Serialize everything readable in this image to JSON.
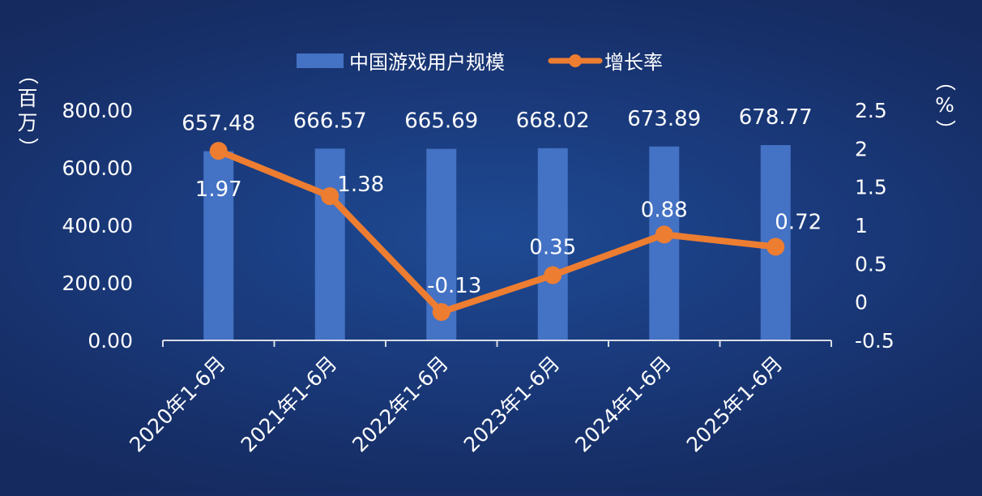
{
  "chart_data": {
    "type": "bar",
    "categories": [
      "2020年1-6月",
      "2021年1-6月",
      "2022年1-6月",
      "2023年1-6月",
      "2024年1-6月",
      "2025年1-6月"
    ],
    "series": [
      {
        "name": "中国游戏用户规模",
        "type": "bar",
        "axis": "left",
        "values": [
          657.48,
          666.57,
          665.69,
          668.02,
          673.89,
          678.77
        ],
        "labels": [
          "657.48",
          "666.57",
          "665.69",
          "668.02",
          "673.89",
          "678.77"
        ],
        "color": "#4472c4"
      },
      {
        "name": "增长率",
        "type": "line",
        "axis": "right",
        "values": [
          1.97,
          1.38,
          -0.13,
          0.35,
          0.88,
          0.72
        ],
        "labels": [
          "1.97",
          "1.38",
          "-0.13",
          "0.35",
          "0.88",
          "0.72"
        ],
        "color": "#ed7d31"
      }
    ],
    "y_left": {
      "label": "（百万）",
      "ylim": [
        0,
        800
      ],
      "ticks": [
        0,
        200,
        400,
        600,
        800
      ],
      "tick_labels": [
        "0.00",
        "200.00",
        "400.00",
        "600.00",
        "800.00"
      ]
    },
    "y_right": {
      "label": "（%）",
      "ylim": [
        -0.5,
        2.5
      ],
      "ticks": [
        -0.5,
        0,
        0.5,
        1,
        1.5,
        2,
        2.5
      ],
      "tick_labels": [
        "-0.5",
        "0",
        "0.5",
        "1",
        "1.5",
        "2",
        "2.5"
      ]
    },
    "legend_position": "top-center",
    "grid": false
  },
  "colors": {
    "text": "#ffffff",
    "axis_line": "#d9dde6"
  }
}
